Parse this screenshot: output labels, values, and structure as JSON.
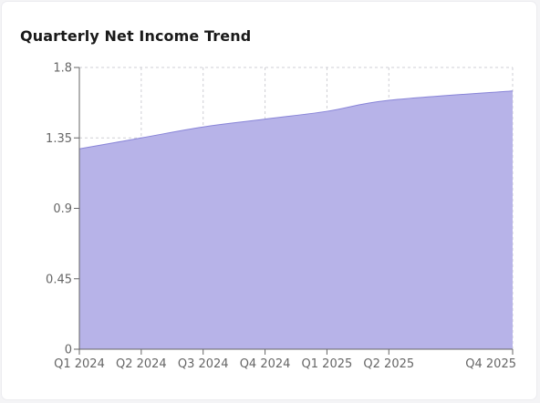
{
  "header": {
    "title": "Quarterly Net Income Trend"
  },
  "chart_data": {
    "type": "area",
    "title": "Quarterly Net Income Trend",
    "xlabel": "",
    "ylabel": "",
    "categories": [
      "Q1 2024",
      "Q2 2024",
      "Q3 2024",
      "Q4 2024",
      "Q1 2025",
      "Q2 2025",
      "Q4 2025"
    ],
    "x": [
      0,
      1,
      2,
      3,
      4,
      5,
      7
    ],
    "values": [
      1.28,
      1.35,
      1.42,
      1.47,
      1.52,
      1.59,
      1.65
    ],
    "ylim": [
      0,
      1.8
    ],
    "yticks": [
      "0",
      "0.45",
      "0.9",
      "1.35",
      "1.8"
    ],
    "ytick_values": [
      0,
      0.45,
      0.9,
      1.35,
      1.8
    ],
    "xlim": [
      0,
      7
    ],
    "grid": true,
    "legend": "none",
    "colors": {
      "fill": "#b7b3e8",
      "stroke": "#8884d8"
    }
  }
}
